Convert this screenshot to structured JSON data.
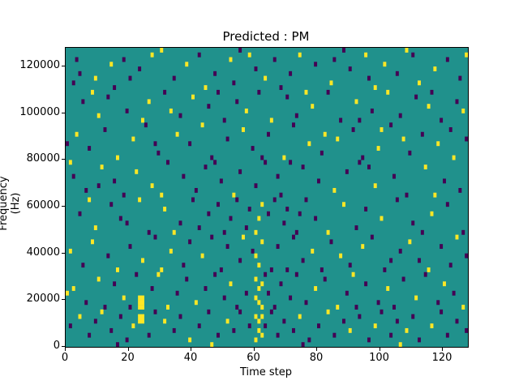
{
  "title": "Predicted : PM",
  "x_axis": {
    "label": "Time step",
    "ticks": [
      0,
      20,
      40,
      60,
      80,
      100,
      120
    ],
    "range": [
      0,
      128
    ]
  },
  "y_axis": {
    "label": "Frequency (Hz)",
    "ticks": [
      0,
      20000,
      40000,
      60000,
      80000,
      100000,
      120000
    ],
    "range": [
      0,
      128000
    ]
  },
  "colors": {
    "figure_background": "#ffffff",
    "axis": "#000000",
    "heatmap_background": "#20918c",
    "value_low": "#440154",
    "value_high": "#fde725"
  },
  "chart_data": {
    "type": "heatmap",
    "title": "Predicted : PM",
    "xlabel": "Time step",
    "ylabel": "Frequency (Hz)",
    "x_range": [
      0,
      128
    ],
    "y_range": [
      0,
      128000
    ],
    "grid_size": [
      128,
      64
    ],
    "hz_per_bin": 2000,
    "background_class": "mid (teal #20918c)",
    "cell_classes": {
      "0": "#440154",
      "1": "#fde725"
    },
    "cells_format": "[time_step, freq_bin_from_bottom, class]",
    "cells": [
      [
        3,
        61,
        0
      ],
      [
        4,
        58,
        0
      ],
      [
        9,
        57,
        1
      ],
      [
        14,
        60,
        1
      ],
      [
        18,
        61,
        0
      ],
      [
        23,
        59,
        0
      ],
      [
        27,
        62,
        1
      ],
      [
        34,
        57,
        0
      ],
      [
        38,
        60,
        1
      ],
      [
        42,
        62,
        0
      ],
      [
        47,
        58,
        0
      ],
      [
        52,
        61,
        1
      ],
      [
        53,
        56,
        0
      ],
      [
        58,
        62,
        1
      ],
      [
        60,
        59,
        0
      ],
      [
        63,
        57,
        1
      ],
      [
        66,
        61,
        0
      ],
      [
        71,
        58,
        0
      ],
      [
        74,
        62,
        1
      ],
      [
        79,
        60,
        0
      ],
      [
        84,
        56,
        1
      ],
      [
        85,
        61,
        0
      ],
      [
        90,
        59,
        0
      ],
      [
        95,
        62,
        1
      ],
      [
        96,
        57,
        0
      ],
      [
        101,
        60,
        1
      ],
      [
        105,
        58,
        0
      ],
      [
        110,
        62,
        0
      ],
      [
        112,
        56,
        1
      ],
      [
        117,
        59,
        1
      ],
      [
        121,
        61,
        0
      ],
      [
        125,
        57,
        0
      ],
      [
        127,
        62,
        1
      ],
      [
        2,
        56,
        0
      ],
      [
        20,
        57,
        0
      ],
      [
        44,
        55,
        1
      ],
      [
        68,
        55,
        0
      ],
      [
        88,
        63,
        0
      ],
      [
        30,
        63,
        1
      ],
      [
        55,
        63,
        0
      ],
      [
        108,
        63,
        1
      ],
      [
        15,
        55,
        0
      ],
      [
        98,
        55,
        1
      ],
      [
        5,
        52,
        0
      ],
      [
        10,
        49,
        1
      ],
      [
        13,
        53,
        0
      ],
      [
        19,
        50,
        0
      ],
      [
        24,
        48,
        1
      ],
      [
        26,
        52,
        1
      ],
      [
        31,
        54,
        0
      ],
      [
        36,
        49,
        0
      ],
      [
        40,
        53,
        1
      ],
      [
        45,
        51,
        0
      ],
      [
        50,
        48,
        0
      ],
      [
        54,
        52,
        0
      ],
      [
        57,
        50,
        1
      ],
      [
        61,
        54,
        0
      ],
      [
        65,
        48,
        1
      ],
      [
        70,
        53,
        0
      ],
      [
        73,
        49,
        0
      ],
      [
        78,
        51,
        1
      ],
      [
        83,
        54,
        0
      ],
      [
        87,
        48,
        0
      ],
      [
        92,
        52,
        1
      ],
      [
        97,
        50,
        0
      ],
      [
        102,
        54,
        1
      ],
      [
        106,
        49,
        0
      ],
      [
        111,
        53,
        0
      ],
      [
        115,
        51,
        1
      ],
      [
        119,
        48,
        0
      ],
      [
        124,
        52,
        0
      ],
      [
        126,
        50,
        1
      ],
      [
        8,
        54,
        1
      ],
      [
        33,
        50,
        1
      ],
      [
        48,
        54,
        0
      ],
      [
        76,
        54,
        1
      ],
      [
        93,
        48,
        0
      ],
      [
        116,
        54,
        0
      ],
      [
        3,
        45,
        1
      ],
      [
        7,
        42,
        0
      ],
      [
        12,
        46,
        0
      ],
      [
        16,
        40,
        1
      ],
      [
        21,
        44,
        1
      ],
      [
        25,
        47,
        0
      ],
      [
        29,
        41,
        0
      ],
      [
        35,
        45,
        1
      ],
      [
        39,
        43,
        0
      ],
      [
        43,
        47,
        1
      ],
      [
        46,
        40,
        0
      ],
      [
        51,
        44,
        0
      ],
      [
        56,
        46,
        1
      ],
      [
        59,
        42,
        0
      ],
      [
        64,
        45,
        0
      ],
      [
        69,
        40,
        1
      ],
      [
        72,
        47,
        0
      ],
      [
        77,
        43,
        1
      ],
      [
        81,
        41,
        0
      ],
      [
        82,
        45,
        1
      ],
      [
        86,
        44,
        1
      ],
      [
        91,
        46,
        0
      ],
      [
        94,
        40,
        0
      ],
      [
        99,
        42,
        1
      ],
      [
        103,
        47,
        0
      ],
      [
        107,
        44,
        1
      ],
      [
        109,
        41,
        0
      ],
      [
        113,
        45,
        0
      ],
      [
        118,
        43,
        1
      ],
      [
        122,
        46,
        0
      ],
      [
        123,
        40,
        1
      ],
      [
        0,
        43,
        0
      ],
      [
        28,
        43,
        0
      ],
      [
        62,
        40,
        0
      ],
      [
        100,
        46,
        1
      ],
      [
        127,
        44,
        0
      ],
      [
        2,
        36,
        0
      ],
      [
        6,
        33,
        0
      ],
      [
        11,
        38,
        1
      ],
      [
        15,
        35,
        0
      ],
      [
        18,
        32,
        0
      ],
      [
        22,
        37,
        1
      ],
      [
        27,
        34,
        1
      ],
      [
        32,
        39,
        0
      ],
      [
        37,
        36,
        0
      ],
      [
        41,
        33,
        0
      ],
      [
        44,
        38,
        0
      ],
      [
        49,
        35,
        0
      ],
      [
        53,
        32,
        1
      ],
      [
        55,
        37,
        0
      ],
      [
        60,
        34,
        0
      ],
      [
        63,
        39,
        0
      ],
      [
        67,
        36,
        0
      ],
      [
        68,
        32,
        0
      ],
      [
        75,
        38,
        0
      ],
      [
        80,
        35,
        0
      ],
      [
        85,
        33,
        1
      ],
      [
        89,
        37,
        0
      ],
      [
        93,
        39,
        0
      ],
      [
        98,
        34,
        1
      ],
      [
        104,
        36,
        0
      ],
      [
        108,
        32,
        0
      ],
      [
        114,
        38,
        1
      ],
      [
        120,
        35,
        0
      ],
      [
        125,
        33,
        0
      ],
      [
        1,
        39,
        1
      ],
      [
        30,
        32,
        1
      ],
      [
        71,
        39,
        0
      ],
      [
        96,
        38,
        0
      ],
      [
        117,
        32,
        1
      ],
      [
        10,
        34,
        0
      ],
      [
        47,
        39,
        0
      ],
      [
        4,
        28,
        0
      ],
      [
        9,
        25,
        1
      ],
      [
        14,
        30,
        0
      ],
      [
        17,
        27,
        0
      ],
      [
        23,
        31,
        1
      ],
      [
        26,
        24,
        0
      ],
      [
        31,
        29,
        1
      ],
      [
        36,
        26,
        0
      ],
      [
        40,
        31,
        0
      ],
      [
        42,
        25,
        0
      ],
      [
        45,
        28,
        0
      ],
      [
        48,
        30,
        0
      ],
      [
        50,
        24,
        0
      ],
      [
        52,
        27,
        0
      ],
      [
        54,
        31,
        0
      ],
      [
        57,
        25,
        0
      ],
      [
        58,
        29,
        0
      ],
      [
        61,
        27,
        1
      ],
      [
        62,
        30,
        1
      ],
      [
        60,
        24,
        1
      ],
      [
        64,
        28,
        0
      ],
      [
        66,
        31,
        0
      ],
      [
        69,
        26,
        0
      ],
      [
        70,
        29,
        0
      ],
      [
        73,
        24,
        0
      ],
      [
        74,
        28,
        0
      ],
      [
        76,
        31,
        0
      ],
      [
        79,
        27,
        0
      ],
      [
        88,
        30,
        1
      ],
      [
        92,
        25,
        0
      ],
      [
        95,
        29,
        0
      ],
      [
        100,
        27,
        1
      ],
      [
        105,
        31,
        0
      ],
      [
        110,
        26,
        0
      ],
      [
        116,
        28,
        1
      ],
      [
        121,
        30,
        0
      ],
      [
        126,
        24,
        0
      ],
      [
        7,
        31,
        1
      ],
      [
        34,
        24,
        1
      ],
      [
        83,
        24,
        1
      ],
      [
        113,
        24,
        0
      ],
      [
        19,
        26,
        0
      ],
      [
        1,
        20,
        1
      ],
      [
        5,
        17,
        0
      ],
      [
        8,
        22,
        1
      ],
      [
        13,
        19,
        0
      ],
      [
        16,
        16,
        1
      ],
      [
        20,
        21,
        0
      ],
      [
        24,
        18,
        1
      ],
      [
        28,
        23,
        0
      ],
      [
        33,
        20,
        1
      ],
      [
        37,
        17,
        0
      ],
      [
        39,
        22,
        0
      ],
      [
        43,
        19,
        1
      ],
      [
        46,
        23,
        0
      ],
      [
        49,
        16,
        0
      ],
      [
        51,
        21,
        0
      ],
      [
        55,
        18,
        0
      ],
      [
        56,
        23,
        1
      ],
      [
        59,
        20,
        0
      ],
      [
        61,
        17,
        1
      ],
      [
        62,
        22,
        1
      ],
      [
        60,
        19,
        1
      ],
      [
        65,
        16,
        0
      ],
      [
        67,
        21,
        0
      ],
      [
        72,
        23,
        0
      ],
      [
        75,
        18,
        0
      ],
      [
        78,
        20,
        1
      ],
      [
        81,
        16,
        0
      ],
      [
        84,
        22,
        0
      ],
      [
        87,
        19,
        1
      ],
      [
        90,
        17,
        0
      ],
      [
        94,
        21,
        1
      ],
      [
        97,
        23,
        0
      ],
      [
        101,
        16,
        0
      ],
      [
        106,
        20,
        0
      ],
      [
        109,
        22,
        1
      ],
      [
        112,
        18,
        0
      ],
      [
        115,
        16,
        1
      ],
      [
        119,
        21,
        0
      ],
      [
        122,
        17,
        0
      ],
      [
        124,
        23,
        1
      ],
      [
        127,
        19,
        0
      ],
      [
        30,
        16,
        1
      ],
      [
        70,
        16,
        0
      ],
      [
        103,
        18,
        0
      ],
      [
        2,
        12,
        1
      ],
      [
        6,
        9,
        0
      ],
      [
        10,
        14,
        1
      ],
      [
        12,
        8,
        0
      ],
      [
        15,
        13,
        0
      ],
      [
        18,
        10,
        1
      ],
      [
        22,
        15,
        0
      ],
      [
        23,
        9,
        1
      ],
      [
        23,
        10,
        1
      ],
      [
        24,
        9,
        1
      ],
      [
        24,
        10,
        1
      ],
      [
        23,
        8,
        1
      ],
      [
        24,
        8,
        1
      ],
      [
        27,
        12,
        0
      ],
      [
        29,
        15,
        1
      ],
      [
        32,
        8,
        1
      ],
      [
        35,
        11,
        0
      ],
      [
        38,
        14,
        0
      ],
      [
        41,
        9,
        1
      ],
      [
        44,
        12,
        0
      ],
      [
        47,
        15,
        0
      ],
      [
        50,
        10,
        0
      ],
      [
        52,
        13,
        1
      ],
      [
        54,
        8,
        0
      ],
      [
        57,
        11,
        0
      ],
      [
        60,
        14,
        1
      ],
      [
        61,
        9,
        1
      ],
      [
        61,
        12,
        1
      ],
      [
        62,
        8,
        1
      ],
      [
        62,
        13,
        1
      ],
      [
        60,
        10,
        1
      ],
      [
        63,
        15,
        0
      ],
      [
        64,
        11,
        0
      ],
      [
        66,
        8,
        0
      ],
      [
        68,
        13,
        0
      ],
      [
        71,
        10,
        0
      ],
      [
        73,
        15,
        0
      ],
      [
        76,
        9,
        0
      ],
      [
        79,
        12,
        1
      ],
      [
        82,
        14,
        0
      ],
      [
        86,
        8,
        1
      ],
      [
        89,
        11,
        0
      ],
      [
        91,
        15,
        1
      ],
      [
        95,
        13,
        0
      ],
      [
        99,
        9,
        0
      ],
      [
        102,
        12,
        1
      ],
      [
        104,
        8,
        0
      ],
      [
        107,
        14,
        0
      ],
      [
        111,
        10,
        1
      ],
      [
        114,
        15,
        0
      ],
      [
        118,
        9,
        0
      ],
      [
        120,
        13,
        1
      ],
      [
        123,
        11,
        0
      ],
      [
        126,
        8,
        1
      ],
      [
        0,
        11,
        1
      ],
      [
        20,
        8,
        0
      ],
      [
        92,
        8,
        0
      ],
      [
        1,
        4,
        0
      ],
      [
        4,
        6,
        1
      ],
      [
        7,
        2,
        0
      ],
      [
        9,
        5,
        0
      ],
      [
        11,
        7,
        1
      ],
      [
        14,
        3,
        0
      ],
      [
        17,
        6,
        0
      ],
      [
        19,
        1,
        0
      ],
      [
        21,
        4,
        1
      ],
      [
        23,
        6,
        1
      ],
      [
        24,
        6,
        1
      ],
      [
        23,
        5,
        1
      ],
      [
        24,
        5,
        1
      ],
      [
        26,
        2,
        0
      ],
      [
        28,
        7,
        0
      ],
      [
        31,
        5,
        1
      ],
      [
        34,
        3,
        0
      ],
      [
        36,
        6,
        0
      ],
      [
        39,
        1,
        1
      ],
      [
        42,
        4,
        0
      ],
      [
        45,
        7,
        0
      ],
      [
        48,
        2,
        0
      ],
      [
        51,
        5,
        1
      ],
      [
        53,
        3,
        0
      ],
      [
        55,
        7,
        0
      ],
      [
        58,
        4,
        0
      ],
      [
        60,
        6,
        1
      ],
      [
        61,
        3,
        1
      ],
      [
        61,
        5,
        1
      ],
      [
        62,
        6,
        1
      ],
      [
        62,
        2,
        1
      ],
      [
        60,
        1,
        1
      ],
      [
        63,
        4,
        0
      ],
      [
        65,
        7,
        0
      ],
      [
        67,
        2,
        0
      ],
      [
        69,
        5,
        0
      ],
      [
        72,
        3,
        0
      ],
      [
        74,
        6,
        1
      ],
      [
        77,
        1,
        0
      ],
      [
        80,
        4,
        0
      ],
      [
        83,
        7,
        1
      ],
      [
        85,
        2,
        0
      ],
      [
        88,
        5,
        0
      ],
      [
        90,
        3,
        1
      ],
      [
        93,
        6,
        0
      ],
      [
        96,
        1,
        0
      ],
      [
        98,
        4,
        1
      ],
      [
        100,
        7,
        0
      ],
      [
        103,
        2,
        0
      ],
      [
        105,
        5,
        0
      ],
      [
        108,
        3,
        1
      ],
      [
        110,
        6,
        0
      ],
      [
        112,
        1,
        0
      ],
      [
        116,
        4,
        1
      ],
      [
        119,
        7,
        0
      ],
      [
        121,
        2,
        0
      ],
      [
        124,
        5,
        0
      ],
      [
        127,
        3,
        0
      ],
      [
        16,
        0,
        0
      ],
      [
        46,
        0,
        1
      ],
      [
        75,
        0,
        0
      ],
      [
        106,
        0,
        1
      ]
    ]
  }
}
